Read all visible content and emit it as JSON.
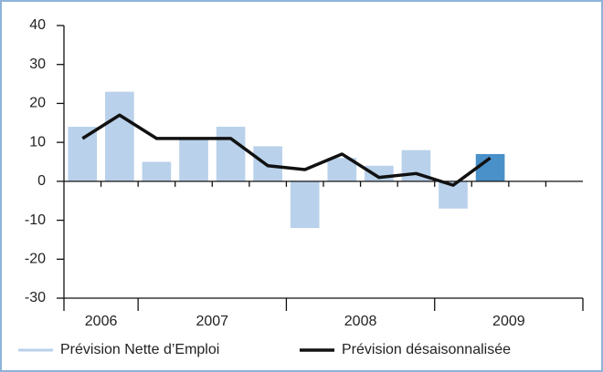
{
  "chart_data": {
    "type": "bar",
    "categories": [
      null,
      null,
      null,
      null,
      null,
      null,
      null,
      null,
      null,
      null,
      null,
      null,
      null,
      null
    ],
    "year_groups": [
      {
        "label": "2006",
        "span": 2
      },
      {
        "label": "2007",
        "span": 4
      },
      {
        "label": "2008",
        "span": 4
      },
      {
        "label": "2009",
        "span": 4
      }
    ],
    "series": [
      {
        "name": "Prévision Nette d’Emploi",
        "type": "bar",
        "color": "#b9d1ea",
        "highlight_color": "#4a90c9",
        "highlight_index": 11,
        "values": [
          14,
          23,
          5,
          11,
          14,
          9,
          -12,
          6,
          4,
          8,
          -7,
          7,
          null,
          null
        ]
      },
      {
        "name": "Prévision désaisonnalisée",
        "type": "line",
        "color": "#111111",
        "values": [
          11,
          17,
          11,
          11,
          11,
          4,
          3,
          7,
          1,
          2,
          -1,
          6,
          null,
          null
        ]
      }
    ],
    "ylim": [
      -30,
      40
    ],
    "yticks": [
      -30,
      -20,
      -10,
      0,
      10,
      20,
      30,
      40
    ]
  }
}
